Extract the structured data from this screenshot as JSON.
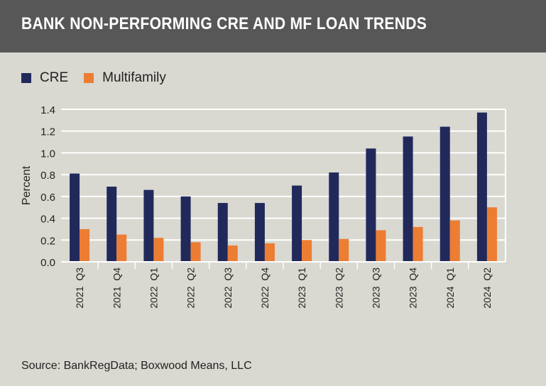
{
  "header": {
    "title": "BANK NON-PERFORMING CRE AND MF LOAN TRENDS"
  },
  "source": "Source: BankRegData; Boxwood Means, LLC",
  "colors": {
    "CRE": "#21295b",
    "Multifamily": "#ec7d33"
  },
  "chart_data": {
    "type": "bar",
    "title": "BANK NON-PERFORMING CRE AND MF LOAN TRENDS",
    "xlabel": "",
    "ylabel": "Percent",
    "ylim": [
      0,
      1.4
    ],
    "yticks": [
      "0.0",
      "0.2",
      "0.4",
      "0.6",
      "0.8",
      "1.0",
      "1.2",
      "1.4"
    ],
    "grid": true,
    "legend": "top-left",
    "categories": [
      "2021  Q3",
      "2021  Q4",
      "2022  Q1",
      "2022  Q2",
      "2022  Q3",
      "2022  Q4",
      "2023  Q1",
      "2023  Q2",
      "2023  Q3",
      "2023  Q4",
      "2024  Q1",
      "2024  Q2"
    ],
    "series": [
      {
        "name": "CRE",
        "values": [
          0.81,
          0.69,
          0.66,
          0.6,
          0.54,
          0.54,
          0.7,
          0.82,
          1.04,
          1.15,
          1.24,
          1.37
        ]
      },
      {
        "name": "Multifamily",
        "values": [
          0.3,
          0.25,
          0.22,
          0.18,
          0.15,
          0.17,
          0.2,
          0.21,
          0.29,
          0.32,
          0.38,
          0.5
        ]
      }
    ]
  }
}
